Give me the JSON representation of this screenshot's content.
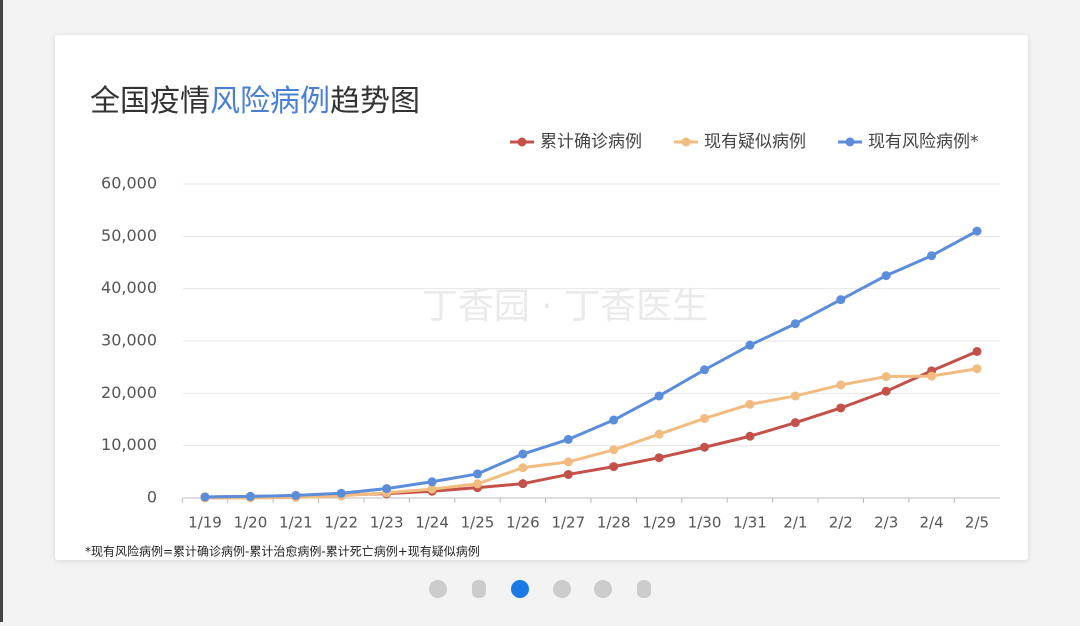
{
  "chart_data": {
    "type": "line",
    "title": [
      "全国疫情",
      "风险病例",
      "趋势图"
    ],
    "watermark": "丁香园 · 丁香医生",
    "footnote": "*现有风险病例=累计确诊病例-累计治愈病例-累计死亡病例+现有疑似病例",
    "categories": [
      "1/19",
      "1/20",
      "1/21",
      "1/22",
      "1/23",
      "1/24",
      "1/25",
      "1/26",
      "1/27",
      "1/28",
      "1/29",
      "1/30",
      "1/31",
      "2/1",
      "2/2",
      "2/3",
      "2/4",
      "2/5"
    ],
    "series": [
      {
        "name": "累计确诊病例",
        "color": "#c4504a",
        "values": [
          200,
          300,
          440,
          570,
          830,
          1290,
          1980,
          2740,
          4500,
          6000,
          7700,
          9700,
          11800,
          14400,
          17200,
          20400,
          24300,
          28000
        ]
      },
      {
        "name": "现有疑似病例",
        "color": "#f2bc80",
        "values": [
          0,
          0,
          100,
          400,
          1000,
          1700,
          2700,
          5800,
          6900,
          9200,
          12200,
          15200,
          17900,
          19500,
          21600,
          23200,
          23300,
          24700
        ]
      },
      {
        "name": "现有风险病例*",
        "color": "#5b8ddb",
        "values": [
          200,
          300,
          500,
          900,
          1800,
          3100,
          4600,
          8400,
          11200,
          14900,
          19500,
          24500,
          29200,
          33300,
          37900,
          42500,
          46300,
          51000
        ]
      }
    ],
    "ylim": [
      0,
      60000
    ],
    "yticks": [
      0,
      {
        "value": 10000,
        "label": "10,000"
      },
      {
        "value": 20000,
        "label": "20,000"
      },
      {
        "value": 30000,
        "label": "30,000"
      },
      {
        "value": 40000,
        "label": "40,000"
      },
      {
        "value": 50000,
        "label": "50,000"
      },
      {
        "value": 60000,
        "label": "60,000"
      }
    ],
    "grid": true,
    "legend": "top-right"
  }
}
